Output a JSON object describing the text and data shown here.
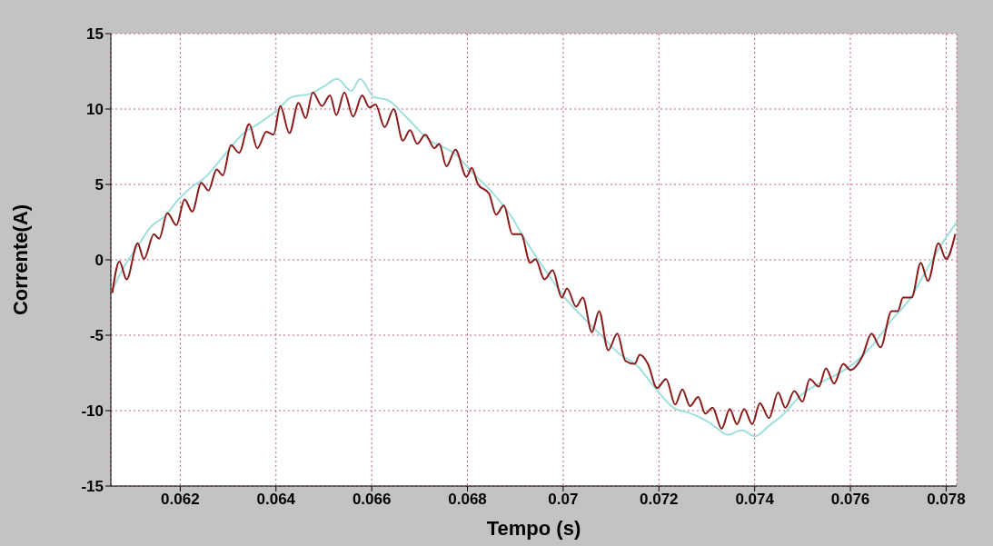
{
  "chart_data": {
    "type": "line",
    "xlabel": "Tempo (s)",
    "ylabel": "Corrente(A)",
    "xlim": [
      0.06055,
      0.07822
    ],
    "xticks": [
      0.062,
      0.064,
      0.066,
      0.068,
      0.07,
      0.072,
      0.074,
      0.076,
      0.078
    ],
    "ylim": [
      -15,
      15
    ],
    "yticks": [
      -15,
      -10,
      -5,
      0,
      5,
      10,
      15
    ],
    "grid": true,
    "marker": "none",
    "line_style": "solid",
    "series": [
      {
        "color": "#9fe0dd",
        "x": [
          0.06058,
          0.06082,
          0.06111,
          0.06139,
          0.06168,
          0.06196,
          0.06215,
          0.06253,
          0.06291,
          0.06329,
          0.06367,
          0.06405,
          0.06433,
          0.06471,
          0.065,
          0.06528,
          0.06557,
          0.06576,
          0.06604,
          0.06633,
          0.06671,
          0.06718,
          0.06775,
          0.06813,
          0.06851,
          0.06889,
          0.06927,
          0.06965,
          0.07003,
          0.07041,
          0.07079,
          0.07116,
          0.07154,
          0.07192,
          0.0723,
          0.07268,
          0.07306,
          0.07344,
          0.07373,
          0.07401,
          0.0743,
          0.07458,
          0.07496,
          0.07534,
          0.07572,
          0.0761,
          0.07648,
          0.07686,
          0.07724,
          0.07762,
          0.0779,
          0.07822
        ],
        "values": [
          -2.0,
          -0.5,
          0.9,
          2.2,
          2.9,
          4.0,
          4.6,
          5.5,
          6.9,
          8.3,
          9.1,
          10.0,
          10.8,
          11.0,
          11.5,
          12.0,
          11.2,
          12.0,
          10.8,
          10.6,
          9.5,
          8.0,
          7.0,
          5.7,
          4.5,
          3.0,
          1.0,
          -0.8,
          -2.5,
          -3.8,
          -5.0,
          -6.2,
          -7.0,
          -8.5,
          -9.8,
          -10.2,
          -10.8,
          -11.6,
          -11.3,
          -11.7,
          -11.0,
          -10.3,
          -9.0,
          -8.2,
          -7.6,
          -6.8,
          -5.6,
          -4.0,
          -2.6,
          -0.5,
          1.0,
          2.5
        ]
      },
      {
        "color": "#8b1a1a",
        "x": [
          0.06058,
          0.06073,
          0.06088,
          0.06111,
          0.06124,
          0.06145,
          0.06156,
          0.06173,
          0.06192,
          0.06209,
          0.06225,
          0.06244,
          0.06259,
          0.06276,
          0.06289,
          0.06306,
          0.06323,
          0.06344,
          0.06361,
          0.0638,
          0.06395,
          0.06409,
          0.06428,
          0.06447,
          0.06462,
          0.06477,
          0.06496,
          0.06513,
          0.06526,
          0.06543,
          0.06561,
          0.0658,
          0.06595,
          0.06608,
          0.06627,
          0.06646,
          0.06665,
          0.0668,
          0.06695,
          0.06712,
          0.06731,
          0.06741,
          0.06756,
          0.06775,
          0.06798,
          0.06809,
          0.06822,
          0.06845,
          0.0686,
          0.06876,
          0.06894,
          0.06912,
          0.06931,
          0.06942,
          0.06961,
          0.06978,
          0.06997,
          0.07008,
          0.07027,
          0.07041,
          0.0706,
          0.07075,
          0.07094,
          0.07113,
          0.0713,
          0.07149,
          0.0716,
          0.07177,
          0.07196,
          0.07215,
          0.07234,
          0.07249,
          0.07265,
          0.07282,
          0.07297,
          0.07312,
          0.07331,
          0.07348,
          0.07363,
          0.07378,
          0.07395,
          0.07411,
          0.0743,
          0.07449,
          0.07464,
          0.07483,
          0.075,
          0.07515,
          0.07534,
          0.07549,
          0.07566,
          0.07585,
          0.076,
          0.07625,
          0.07644,
          0.07663,
          0.07686,
          0.07699,
          0.0771,
          0.07728,
          0.07747,
          0.07762,
          0.07784,
          0.078,
          0.07819
        ],
        "values": [
          -2.2,
          -0.1,
          -1.3,
          1.1,
          0.05,
          1.7,
          1.4,
          3.1,
          2.3,
          4.0,
          3.2,
          5.1,
          4.6,
          6.0,
          5.6,
          7.6,
          7.1,
          9.0,
          7.4,
          8.5,
          8.3,
          10.2,
          8.4,
          10.4,
          9.4,
          11.1,
          10.2,
          10.9,
          9.6,
          11.1,
          9.5,
          10.9,
          10.1,
          10.3,
          8.8,
          10.0,
          7.9,
          8.6,
          7.7,
          8.3,
          7.4,
          7.7,
          6.2,
          7.3,
          5.5,
          6.1,
          5.0,
          4.4,
          3.0,
          3.6,
          1.7,
          1.7,
          -0.2,
          0.05,
          -1.3,
          -0.7,
          -2.5,
          -1.9,
          -3.1,
          -2.5,
          -4.8,
          -3.4,
          -6.0,
          -4.9,
          -6.7,
          -6.9,
          -6.3,
          -6.9,
          -8.5,
          -7.9,
          -9.6,
          -8.6,
          -9.7,
          -9.1,
          -10.2,
          -9.8,
          -11.2,
          -9.9,
          -10.9,
          -9.9,
          -10.9,
          -9.5,
          -10.5,
          -8.8,
          -9.8,
          -8.7,
          -9.4,
          -7.9,
          -8.4,
          -7.2,
          -8.2,
          -6.9,
          -7.3,
          -6.4,
          -4.9,
          -5.8,
          -3.4,
          -3.4,
          -2.5,
          -2.5,
          -0.2,
          -1.4,
          1.1,
          0.05,
          1.7
        ]
      }
    ]
  }
}
